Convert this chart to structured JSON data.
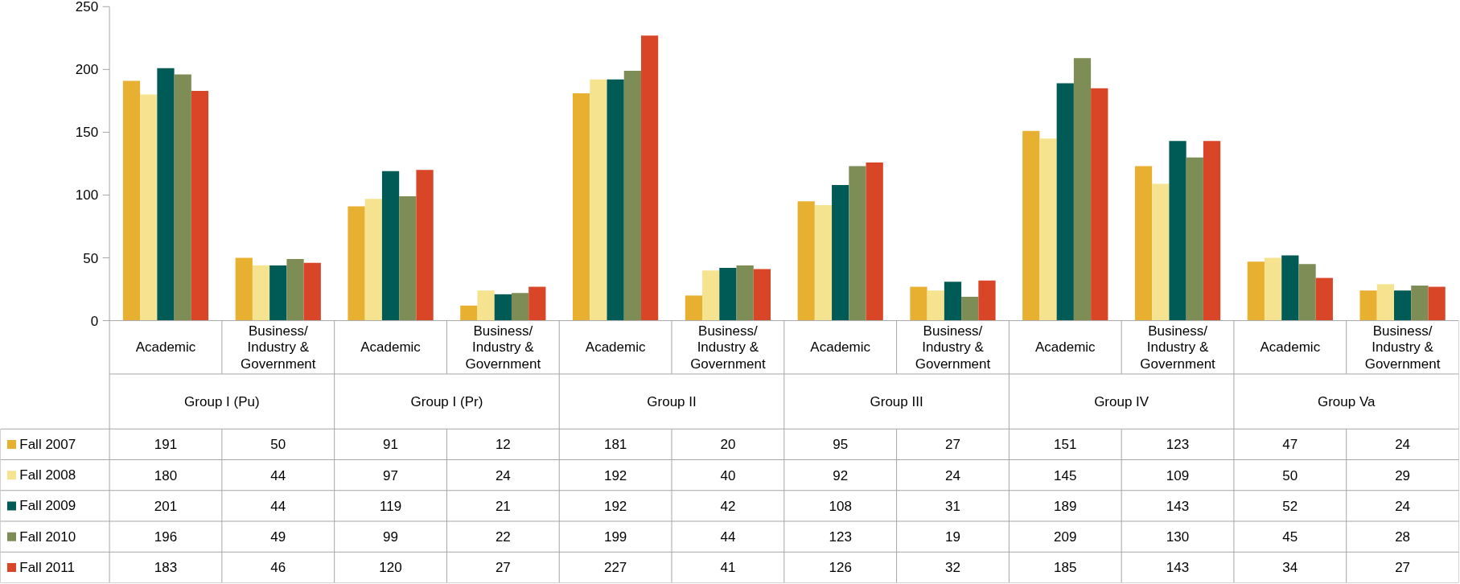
{
  "chart_data": {
    "type": "bar",
    "categories": [
      "Academic",
      "Business/ Industry & Government",
      "Academic",
      "Business/ Industry & Government",
      "Academic",
      "Business/ Industry & Government",
      "Academic",
      "Business/ Industry & Government",
      "Academic",
      "Business/ Industry & Government",
      "Academic",
      "Business/ Industry & Government"
    ],
    "annotations": [
      "Group I (Pu)",
      "Group I (Pr)",
      "Group II",
      "Group III",
      "Group IV",
      "Group Va"
    ],
    "series": [
      {
        "name": "Fall 2007",
        "color": "#e8b030",
        "values": [
          191,
          50,
          91,
          12,
          181,
          20,
          95,
          27,
          151,
          123,
          47,
          24
        ]
      },
      {
        "name": "Fall 2008",
        "color": "#f5e38f",
        "values": [
          180,
          44,
          97,
          24,
          192,
          40,
          92,
          24,
          145,
          109,
          50,
          29
        ]
      },
      {
        "name": "Fall 2009",
        "color": "#005a55",
        "values": [
          201,
          44,
          119,
          21,
          192,
          42,
          108,
          31,
          189,
          143,
          52,
          24
        ]
      },
      {
        "name": "Fall 2010",
        "color": "#7e8c55",
        "values": [
          196,
          49,
          99,
          22,
          199,
          44,
          123,
          19,
          209,
          130,
          45,
          28
        ]
      },
      {
        "name": "Fall 2011",
        "color": "#d94527",
        "values": [
          183,
          46,
          120,
          27,
          227,
          41,
          126,
          32,
          185,
          143,
          34,
          27
        ]
      }
    ],
    "ylim": [
      0,
      250
    ],
    "yticks": [
      0,
      50,
      100,
      150,
      200,
      250
    ],
    "data_labels": true,
    "legend": "bottom"
  }
}
